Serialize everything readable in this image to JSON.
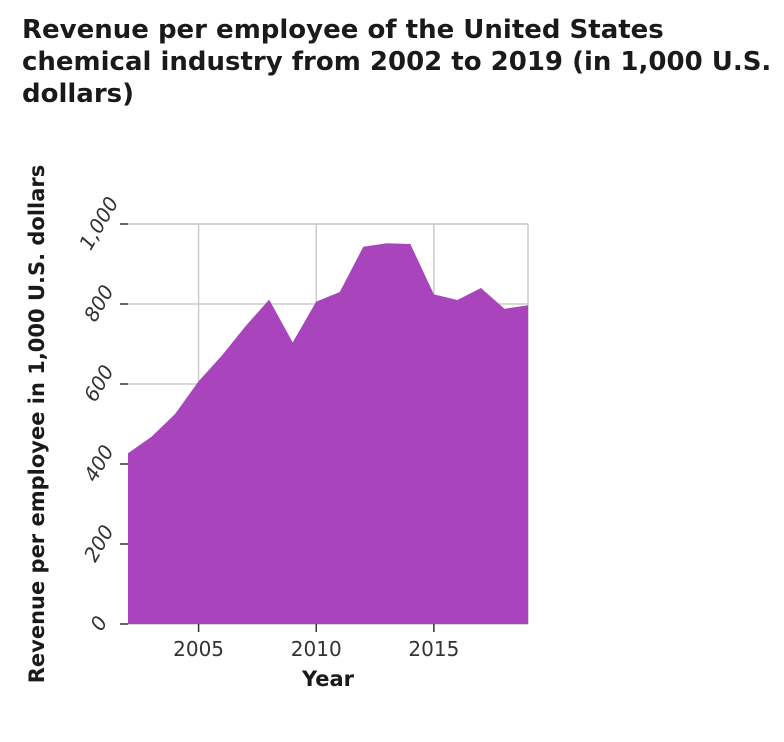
{
  "chart_data": {
    "type": "area",
    "title": "Revenue per employee of the United States chemical industry from 2002 to 2019 (in 1,000 U.S. dollars)",
    "xlabel": "Year",
    "ylabel": "Revenue per employee in 1,000 U.S. dollars",
    "x": [
      2002,
      2003,
      2004,
      2005,
      2006,
      2007,
      2008,
      2009,
      2010,
      2011,
      2012,
      2013,
      2014,
      2015,
      2016,
      2017,
      2018,
      2019
    ],
    "values": [
      427,
      468,
      525,
      607,
      672,
      745,
      811,
      704,
      806,
      830,
      943,
      952,
      950,
      824,
      810,
      840,
      788,
      797
    ],
    "xlim": [
      2002,
      2019
    ],
    "ylim": [
      0,
      1000
    ],
    "xticks": [
      2005,
      2010,
      2015
    ],
    "xtick_labels": [
      "2005",
      "2010",
      "2015"
    ],
    "yticks": [
      0,
      200,
      400,
      600,
      800,
      1000
    ],
    "ytick_labels": [
      "0",
      "200",
      "400",
      "600",
      "800",
      "1,000"
    ],
    "grid": true,
    "fill_color": "#a845bd",
    "grid_color": "#cccccc"
  }
}
